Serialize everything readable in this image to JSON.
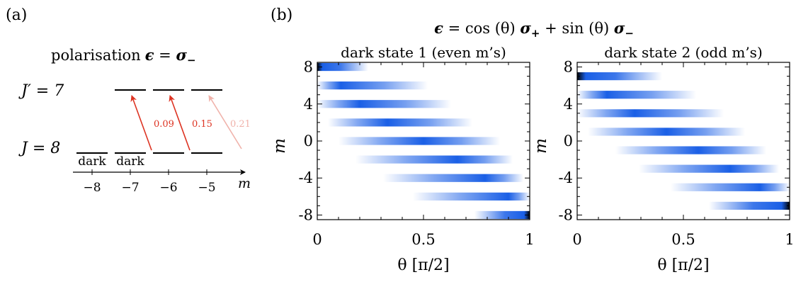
{
  "panel_a": {
    "label": "(a)",
    "title_text": "polarisation",
    "title_eps": "ϵ",
    "title_eq": " = ",
    "title_sigma": "σ",
    "title_sub": "−",
    "upper_J": "J′ = 7",
    "lower_J": "J = 8",
    "dark_label_1": "dark",
    "dark_label_2": "dark",
    "axis_label": "m",
    "ticks": [
      "−8",
      "−7",
      "−6",
      "−5"
    ],
    "transitions": [
      {
        "strength": "0.09",
        "color": "#dd3322"
      },
      {
        "strength": "0.15",
        "color": "#dd3322"
      },
      {
        "strength": "0.21",
        "color": "#f0b2aa"
      }
    ]
  },
  "panel_b": {
    "label": "(b)",
    "title": {
      "eps": "ϵ",
      "eq": " = cos (θ) ",
      "plus_sym": "σ",
      "plus_sub": "+",
      "mid": " + sin (θ) ",
      "minus_sym": "σ",
      "minus_sub": "−"
    },
    "colors": {
      "mid": "#1a5fe6",
      "peak": "#000000"
    },
    "plots": [
      {
        "title": "dark state 1 (even m’s)",
        "ylabel": "m",
        "xlabel": "θ [π/2]",
        "xticks": [
          "0",
          "0.5",
          "1"
        ],
        "yticks": [
          "8",
          "4",
          "0",
          "-4",
          "-8"
        ],
        "bands": [
          {
            "m": 8,
            "start": 0.0,
            "peak": 0.0,
            "end": 0.24
          },
          {
            "m": 6,
            "start": 0.0,
            "peak": 0.11,
            "end": 0.52
          },
          {
            "m": 4,
            "start": 0.0,
            "peak": 0.2,
            "end": 0.63
          },
          {
            "m": 2,
            "start": 0.05,
            "peak": 0.33,
            "end": 0.73
          },
          {
            "m": 0,
            "start": 0.1,
            "peak": 0.5,
            "end": 0.86
          },
          {
            "m": -2,
            "start": 0.18,
            "peak": 0.66,
            "end": 0.92
          },
          {
            "m": -4,
            "start": 0.31,
            "peak": 0.79,
            "end": 0.97
          },
          {
            "m": -6,
            "start": 0.45,
            "peak": 0.9,
            "end": 1.0
          },
          {
            "m": -8,
            "start": 0.74,
            "peak": 1.0,
            "end": 1.0
          }
        ]
      },
      {
        "title": "dark state 2 (odd m’s)",
        "ylabel": "m",
        "xlabel": "θ [π/2]",
        "xticks": [
          "0",
          "0.5",
          "1"
        ],
        "yticks": [
          "8",
          "4",
          "0",
          "-4",
          "-8"
        ],
        "bands": [
          {
            "m": 7,
            "start": 0.0,
            "peak": 0.0,
            "end": 0.4
          },
          {
            "m": 5,
            "start": 0.0,
            "peak": 0.14,
            "end": 0.56
          },
          {
            "m": 3,
            "start": 0.0,
            "peak": 0.27,
            "end": 0.69
          },
          {
            "m": 1,
            "start": 0.05,
            "peak": 0.42,
            "end": 0.79
          },
          {
            "m": -1,
            "start": 0.18,
            "peak": 0.57,
            "end": 0.89
          },
          {
            "m": -3,
            "start": 0.29,
            "peak": 0.72,
            "end": 0.95
          },
          {
            "m": -5,
            "start": 0.44,
            "peak": 0.86,
            "end": 1.0
          },
          {
            "m": -7,
            "start": 0.62,
            "peak": 1.0,
            "end": 1.0
          }
        ]
      }
    ]
  }
}
